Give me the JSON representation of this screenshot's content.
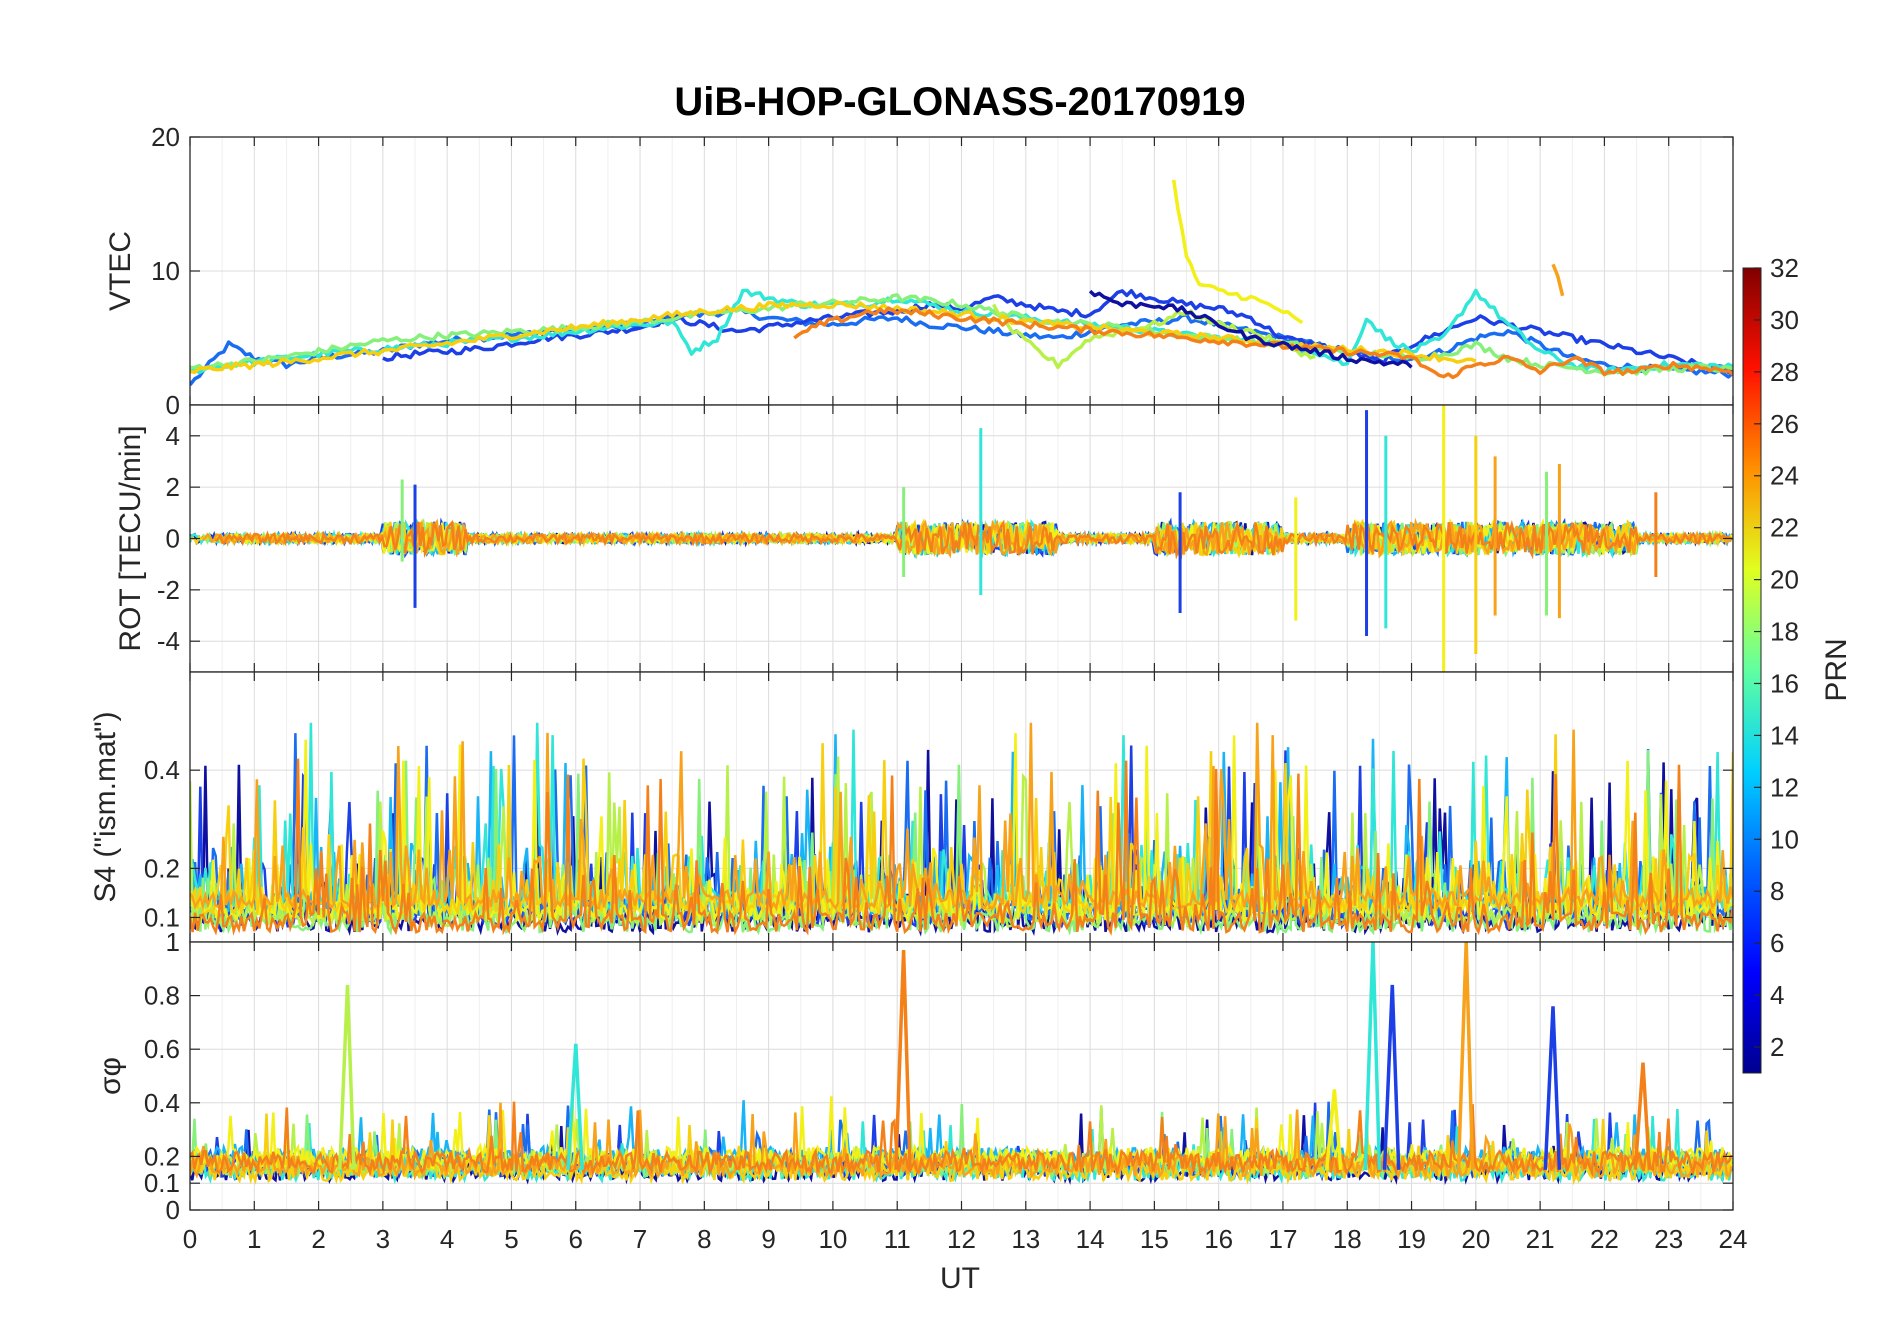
{
  "chart_data": {
    "type": "line",
    "title": "UiB-HOP-GLONASS-20170919",
    "xlabel": "UT",
    "xlim": [
      0,
      24
    ],
    "xticks": [
      "0",
      "1",
      "2",
      "3",
      "4",
      "5",
      "6",
      "7",
      "8",
      "9",
      "10",
      "11",
      "12",
      "13",
      "14",
      "15",
      "16",
      "17",
      "18",
      "19",
      "20",
      "21",
      "22",
      "23",
      "24"
    ],
    "colorbar": {
      "label": "PRN",
      "range": [
        1,
        32
      ],
      "ticks": [
        "2",
        "4",
        "6",
        "8",
        "10",
        "12",
        "14",
        "16",
        "18",
        "20",
        "22",
        "24",
        "26",
        "28",
        "30",
        "32"
      ],
      "colormap": [
        "#00008f",
        "#0000ff",
        "#0080ff",
        "#00ffff",
        "#80ff80",
        "#ffff00",
        "#ff8000",
        "#ff0000",
        "#800000"
      ]
    },
    "series_legend": [
      {
        "prn": 2,
        "color": "#1010a0"
      },
      {
        "prn": 5,
        "color": "#1d3fe6"
      },
      {
        "prn": 8,
        "color": "#1a6cf0"
      },
      {
        "prn": 11,
        "color": "#19b4f5"
      },
      {
        "prn": 13,
        "color": "#30e6d6"
      },
      {
        "prn": 16,
        "color": "#86f07a"
      },
      {
        "prn": 17,
        "color": "#b8f04a"
      },
      {
        "prn": 20,
        "color": "#f2f016"
      },
      {
        "prn": 21,
        "color": "#f8cf0e"
      },
      {
        "prn": 23,
        "color": "#f7a21a"
      },
      {
        "prn": 24,
        "color": "#f4801a"
      }
    ],
    "panels": [
      {
        "id": "vtec",
        "ylabel": "VTEC",
        "ylim": [
          0,
          20
        ],
        "yticks": [
          "0",
          "10",
          "20"
        ],
        "yticks_values": [
          0,
          10,
          20
        ],
        "series": [
          {
            "prn": 8,
            "x": [
              0,
              0.3,
              0.6,
              1,
              1.5,
              2,
              2.5,
              3,
              3.5,
              4,
              4.5,
              5,
              5.5,
              6,
              6.5,
              7,
              7.5,
              8,
              8.5,
              9,
              9.5,
              10,
              10.5,
              11,
              11.5,
              12,
              12.5,
              13,
              13.5,
              14,
              14.5,
              15,
              15.5,
              16,
              16.5,
              17,
              17.5,
              18,
              18.5,
              19,
              19.5,
              20,
              20.5,
              21,
              21.5,
              22,
              22.5,
              23,
              23.5,
              24
            ],
            "y": [
              1.5,
              3,
              4.5,
              3.5,
              3,
              3.5,
              3.8,
              4,
              4.5,
              4.8,
              5,
              5.2,
              5.5,
              5.6,
              5.8,
              6,
              6.5,
              6.8,
              7,
              6.5,
              6.2,
              6,
              6.3,
              6.5,
              6,
              5.8,
              5.5,
              5.2,
              5,
              5.5,
              6,
              6.2,
              6.5,
              6,
              5.5,
              5,
              4.5,
              4,
              3.5,
              3.5,
              4,
              5,
              5.5,
              4.5,
              3.5,
              3,
              2.8,
              2.6,
              2.5,
              2.3
            ]
          },
          {
            "prn": 5,
            "x": [
              3,
              3.5,
              4,
              4.5,
              5,
              5.5,
              6,
              6.5,
              7,
              7.5,
              8,
              8.5,
              9,
              9.5,
              10,
              10.5,
              11,
              11.5,
              12,
              12.5,
              13,
              13.5,
              14,
              14.5,
              15,
              15.5,
              16,
              16.5,
              17,
              17.5,
              18,
              18.5,
              19,
              19.5,
              20,
              20.5,
              21,
              21.5,
              22,
              22.5,
              23,
              23.5,
              24
            ],
            "y": [
              3.5,
              3.8,
              4,
              4.2,
              4.6,
              5,
              5.2,
              5.5,
              5.8,
              6.5,
              6,
              5.5,
              5.8,
              6.2,
              6.5,
              6.8,
              7,
              7.5,
              7.2,
              8,
              7.5,
              7,
              6.8,
              8.5,
              8,
              7.5,
              7.2,
              6.5,
              5,
              4.5,
              4,
              3.2,
              4.5,
              5.5,
              6.5,
              6,
              5.5,
              5,
              4.5,
              4,
              3.5,
              3,
              2.5
            ]
          },
          {
            "prn": 13,
            "x": [
              0,
              0.5,
              1,
              1.5,
              2,
              2.5,
              3,
              3.5,
              4,
              4.5,
              5,
              5.5,
              6,
              6.5,
              7,
              7.5,
              7.8,
              8.2,
              8.6,
              9,
              9.5,
              10,
              10.5,
              11,
              11.5,
              12,
              12.5,
              13,
              13.5,
              14,
              14.5,
              15,
              15.5,
              16,
              16.5,
              17,
              17.5,
              18,
              18.3,
              18.6,
              19,
              19.5,
              20,
              20.5,
              21,
              21.5,
              22,
              22.5,
              23,
              23.5,
              24
            ],
            "y": [
              2.5,
              3,
              3.2,
              3.5,
              3.8,
              4,
              4.2,
              4.4,
              4.6,
              4.8,
              5,
              5.2,
              5.5,
              5.8,
              6,
              6.2,
              4,
              5,
              8.5,
              8,
              7.5,
              7.5,
              7.5,
              8,
              7.5,
              7,
              6.8,
              6.5,
              6.2,
              6,
              5.8,
              5.5,
              5.2,
              5,
              4.8,
              4.5,
              4,
              3,
              6.5,
              5,
              4,
              5,
              8.5,
              6,
              4,
              3,
              2.5,
              2.8,
              3,
              3,
              2.8
            ]
          },
          {
            "prn": 16,
            "x": [
              0,
              0.5,
              1,
              1.5,
              2,
              2.5,
              3,
              3.5,
              4,
              4.5,
              5,
              5.5,
              6,
              6.5,
              7,
              7.5,
              8,
              8.5,
              9,
              9.5,
              10,
              10.5,
              11,
              11.5,
              12,
              12.5,
              13,
              13.5,
              14,
              14.5,
              15,
              15.5,
              16,
              16.5,
              17,
              17.5,
              18,
              18.5,
              19,
              19.5,
              20,
              20.5,
              21,
              21.5,
              22,
              22.5,
              23,
              23.5,
              24
            ],
            "y": [
              2.8,
              3,
              3.3,
              3.6,
              4,
              4.4,
              4.8,
              5,
              5.2,
              5.3,
              5.5,
              5.6,
              5.8,
              6,
              6.2,
              6.5,
              6.8,
              7,
              7.2,
              7.5,
              7.6,
              7.8,
              8,
              7.8,
              7.5,
              7,
              6.5,
              6.2,
              6,
              5.8,
              5.5,
              5.2,
              5,
              4.8,
              4.6,
              4.3,
              4,
              3.8,
              3.5,
              3.8,
              4.5,
              3.5,
              3,
              2.8,
              2.5,
              2.5,
              2.7,
              2.8,
              2.6
            ]
          },
          {
            "prn": 17,
            "x": [
              12.5,
              12.8,
              13.2,
              13.5,
              14,
              14.5,
              15,
              15.5,
              16,
              16.5,
              17,
              17.5
            ],
            "y": [
              7.5,
              5.5,
              4,
              3,
              5,
              5.5,
              6,
              7,
              6,
              5.5,
              4.5,
              3.5
            ]
          },
          {
            "prn": 20,
            "x": [
              15.3,
              15.5,
              15.7,
              16,
              16.5,
              17,
              17.3
            ],
            "y": [
              16.8,
              11,
              9,
              8.5,
              8,
              7,
              6
            ]
          },
          {
            "prn": 21,
            "x": [
              0,
              0.5,
              1,
              1.5,
              2,
              2.5,
              3,
              3.5,
              4,
              4.5,
              5,
              5.5,
              6,
              6.5,
              7,
              7.5,
              8,
              8.5,
              9,
              9.5,
              10,
              10.5,
              11,
              11.5,
              12,
              12.5,
              13,
              13.5,
              14,
              14.5,
              15,
              15.5,
              16,
              16.5,
              17,
              17.5,
              18,
              18.5,
              19,
              19.5,
              20
            ],
            "y": [
              2.5,
              2.8,
              3,
              3.2,
              3.5,
              3.8,
              4,
              4.3,
              4.6,
              4.9,
              5.2,
              5.5,
              5.8,
              6.1,
              6.4,
              6.7,
              7,
              7.2,
              7.4,
              7.5,
              7.5,
              7.4,
              7.2,
              7,
              6.8,
              6.5,
              6.2,
              6,
              5.8,
              5.6,
              5.4,
              5.2,
              5,
              4.8,
              4.5,
              4.3,
              4.2,
              4,
              3.8,
              3.5,
              3.2
            ]
          },
          {
            "prn": 23,
            "x": [
              21.2,
              21.35
            ],
            "y": [
              10.5,
              8.3
            ]
          },
          {
            "prn": 24,
            "x": [
              9.4,
              9.8,
              10.2,
              10.6,
              11,
              11.5,
              12,
              12.5,
              13,
              13.5,
              14,
              14.5,
              15,
              15.5,
              16,
              16.5,
              17,
              17.5,
              18,
              18.5,
              19,
              19.5,
              20,
              20.5,
              21,
              21.5,
              22,
              22.5,
              23,
              23.5,
              24
            ],
            "y": [
              5,
              6,
              6.5,
              7,
              7,
              6.8,
              6.5,
              6.3,
              6,
              5.8,
              5.6,
              5.4,
              5.2,
              5,
              4.8,
              4.6,
              4.4,
              4.2,
              4,
              3.8,
              3.5,
              2,
              3,
              3.5,
              2.5,
              3.5,
              2.5,
              2.5,
              3,
              2.8,
              2.5
            ]
          },
          {
            "prn": 2,
            "x": [
              14,
              14.5,
              15,
              15.5,
              16,
              16.5,
              17,
              17.5,
              18,
              18.5,
              19
            ],
            "y": [
              8.5,
              7.5,
              7.5,
              7,
              6,
              5,
              4.5,
              4,
              3.5,
              3.2,
              3
            ]
          }
        ]
      },
      {
        "id": "rot",
        "ylabel": "ROT [TECU/min]",
        "ylim": [
          -5.2,
          5.2
        ],
        "yticks": [
          "-4",
          "-2",
          "0",
          "2",
          "4"
        ],
        "yticks_values": [
          -4,
          -2,
          0,
          2,
          4
        ],
        "spikes": [
          {
            "prn": 5,
            "x": 3.5,
            "y": [
              -2.7,
              2.1
            ]
          },
          {
            "prn": 16,
            "x": 3.3,
            "y": [
              -0.9,
              2.3
            ]
          },
          {
            "prn": 13,
            "x": 12.3,
            "y": [
              -2.2,
              4.3
            ]
          },
          {
            "prn": 16,
            "x": 11.1,
            "y": [
              -1.5,
              2.0
            ]
          },
          {
            "prn": 5,
            "x": 15.4,
            "y": [
              -2.9,
              1.8
            ]
          },
          {
            "prn": 20,
            "x": 17.2,
            "y": [
              -3.2,
              1.6
            ]
          },
          {
            "prn": 5,
            "x": 18.3,
            "y": [
              -3.8,
              5.0
            ]
          },
          {
            "prn": 13,
            "x": 18.6,
            "y": [
              -3.5,
              4.0
            ]
          },
          {
            "prn": 20,
            "x": 19.5,
            "y": [
              -5.2,
              5.2
            ]
          },
          {
            "prn": 21,
            "x": 20.0,
            "y": [
              -4.5,
              4.0
            ]
          },
          {
            "prn": 23,
            "x": 20.3,
            "y": [
              -3.0,
              3.2
            ]
          },
          {
            "prn": 23,
            "x": 21.3,
            "y": [
              -3.1,
              2.9
            ]
          },
          {
            "prn": 16,
            "x": 21.1,
            "y": [
              -3.0,
              2.6
            ]
          },
          {
            "prn": 24,
            "x": 22.8,
            "y": [
              -1.5,
              1.8
            ]
          }
        ]
      },
      {
        "id": "s4",
        "ylabel": "S4 (\"ism.mat\")",
        "ylim": [
          0.05,
          0.6
        ],
        "yticks": [
          "0.1",
          "0.2",
          "0.4"
        ],
        "yticks_values": [
          0.1,
          0.2,
          0.4
        ],
        "top_tick": "1"
      },
      {
        "id": "sigma_phi",
        "ylabel": "σφ",
        "ylim": [
          0,
          1
        ],
        "yticks": [
          "0",
          "0.1",
          "0.2",
          "0.4",
          "0.6",
          "0.8"
        ],
        "yticks_values": [
          0,
          0.1,
          0.2,
          0.4,
          0.6,
          0.8
        ],
        "peaks": [
          {
            "prn": 17,
            "x": 2.45,
            "y": 0.84
          },
          {
            "prn": 13,
            "x": 6.0,
            "y": 0.62
          },
          {
            "prn": 24,
            "x": 11.1,
            "y": 0.97
          },
          {
            "prn": 13,
            "x": 18.4,
            "y": 1.0
          },
          {
            "prn": 5,
            "x": 18.7,
            "y": 0.84
          },
          {
            "prn": 23,
            "x": 19.85,
            "y": 1.0
          },
          {
            "prn": 5,
            "x": 21.2,
            "y": 0.76
          },
          {
            "prn": 24,
            "x": 22.6,
            "y": 0.55
          },
          {
            "prn": 20,
            "x": 17.8,
            "y": 0.45
          }
        ]
      }
    ]
  }
}
